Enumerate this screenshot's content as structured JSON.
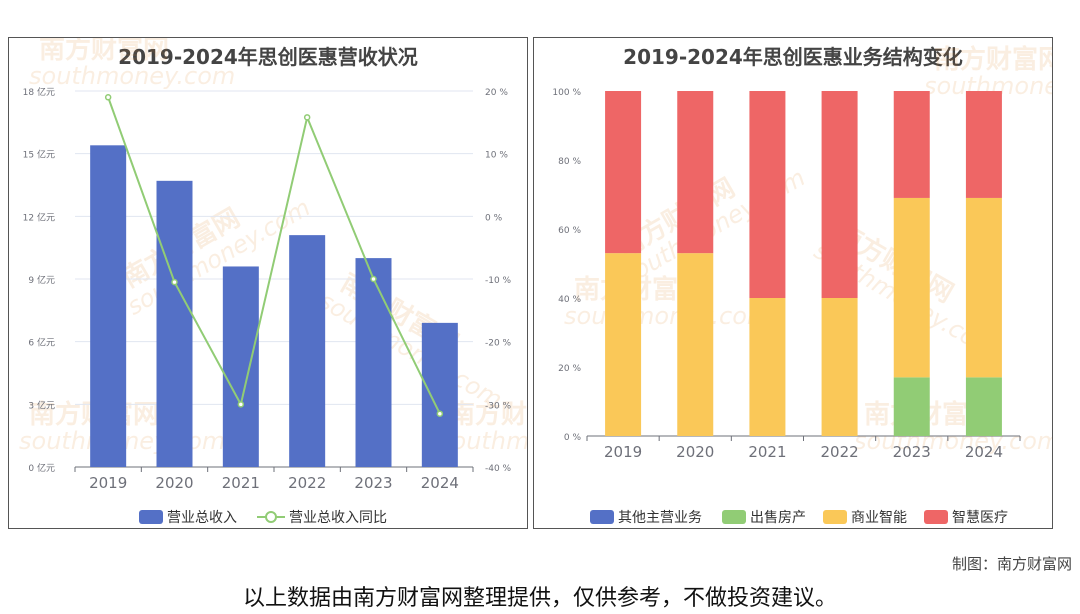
{
  "credit": "制图：南方财富网",
  "disclaimer": "以上数据由南方财富网整理提供，仅供参考，不做投资建议。",
  "watermark": {
    "cn": "南方财富网",
    "en": "southmoney.com"
  },
  "colors": {
    "blue": "#5470c6",
    "green": "#91cc75",
    "yellow": "#fac858",
    "red": "#ee6666",
    "axis": "#6e7079",
    "grid": "#e0e6f1"
  },
  "chart_data": [
    {
      "type": "bar",
      "title": "2019-2024年思创医惠营收状况",
      "categories": [
        "2019",
        "2020",
        "2021",
        "2022",
        "2023",
        "2024"
      ],
      "series": [
        {
          "name": "营业总收入",
          "type": "bar",
          "axis": "left",
          "unit": "亿元",
          "values": [
            15.4,
            13.7,
            9.6,
            11.1,
            10.0,
            6.9
          ]
        },
        {
          "name": "营业总收入同比",
          "type": "line",
          "axis": "right",
          "unit": "%",
          "values": [
            19.0,
            -10.5,
            -30.0,
            15.8,
            -10.0,
            -31.5
          ]
        }
      ],
      "y_left": {
        "ylim": [
          0,
          18
        ],
        "ticks": [
          0,
          3,
          6,
          9,
          12,
          15,
          18
        ],
        "tick_labels": [
          "0 亿元",
          "3 亿元",
          "6 亿元",
          "9 亿元",
          "12 亿元",
          "15 亿元",
          "18 亿元"
        ]
      },
      "y_right": {
        "ylim": [
          -40,
          20
        ],
        "ticks": [
          -40,
          -30,
          -20,
          -10,
          0,
          10,
          20
        ],
        "tick_labels": [
          "-40 %",
          "-30 %",
          "-20 %",
          "-10 %",
          "0 %",
          "10 %",
          "20 %"
        ]
      },
      "grid": true,
      "legend": "bottom"
    },
    {
      "type": "bar",
      "stacked": true,
      "percent": true,
      "title": "2019-2024年思创医惠业务结构变化",
      "categories": [
        "2019",
        "2020",
        "2021",
        "2022",
        "2023",
        "2024"
      ],
      "series": [
        {
          "name": "其他主营业务",
          "values": [
            0,
            0,
            0,
            0,
            0,
            0
          ]
        },
        {
          "name": "出售房产",
          "values": [
            0,
            0,
            0,
            0,
            17,
            17
          ]
        },
        {
          "name": "商业智能",
          "values": [
            53,
            53,
            40,
            40,
            52,
            52
          ]
        },
        {
          "name": "智慧医疗",
          "values": [
            47,
            47,
            60,
            60,
            31,
            31
          ]
        }
      ],
      "y": {
        "ylim": [
          0,
          100
        ],
        "ticks": [
          0,
          20,
          40,
          60,
          80,
          100
        ],
        "tick_labels": [
          "0 %",
          "20 %",
          "40 %",
          "60 %",
          "80 %",
          "100 %"
        ]
      },
      "grid": false,
      "legend": "bottom"
    }
  ]
}
